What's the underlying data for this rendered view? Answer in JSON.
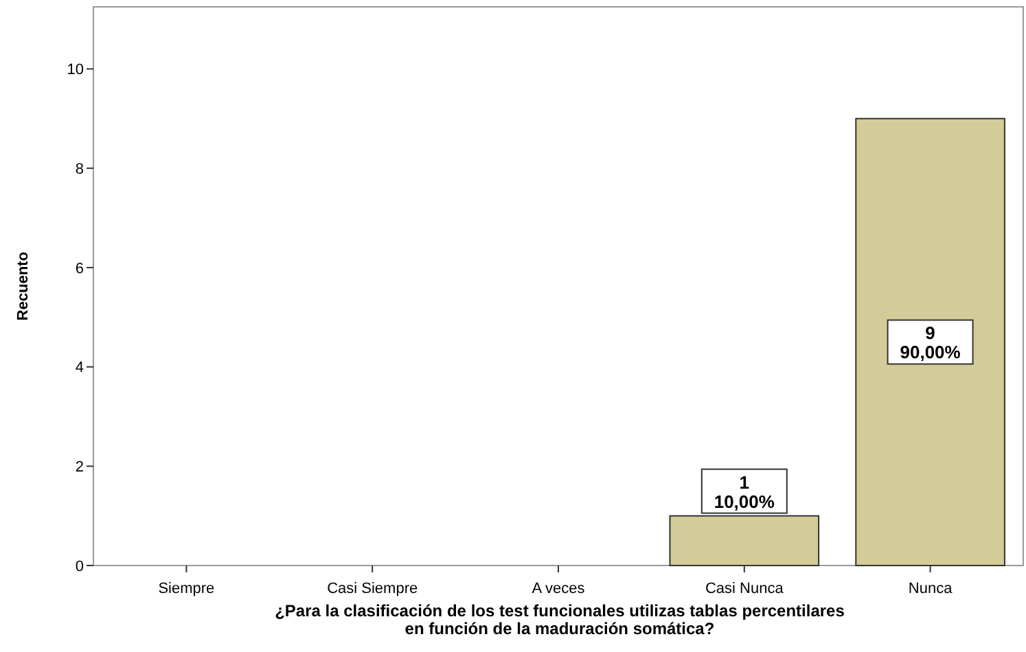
{
  "chart_data": {
    "type": "bar",
    "xlabel": "¿Para la clasificación de los test funcionales utilizas tablas percentilares en función de la maduración somática?",
    "ylabel": "Recuento",
    "categories": [
      "Siempre",
      "Casi Siempre",
      "A veces",
      "Casi Nunca",
      "Nunca"
    ],
    "values": [
      0,
      0,
      0,
      1,
      9
    ],
    "color": "#d3cb98",
    "value_labels": [
      null,
      null,
      null,
      "1\n10,00%",
      "9\n90,00%"
    ],
    "ylim": [
      0,
      11.25
    ],
    "yticks": [
      0,
      2,
      4,
      6,
      8,
      10
    ],
    "grid": false
  }
}
